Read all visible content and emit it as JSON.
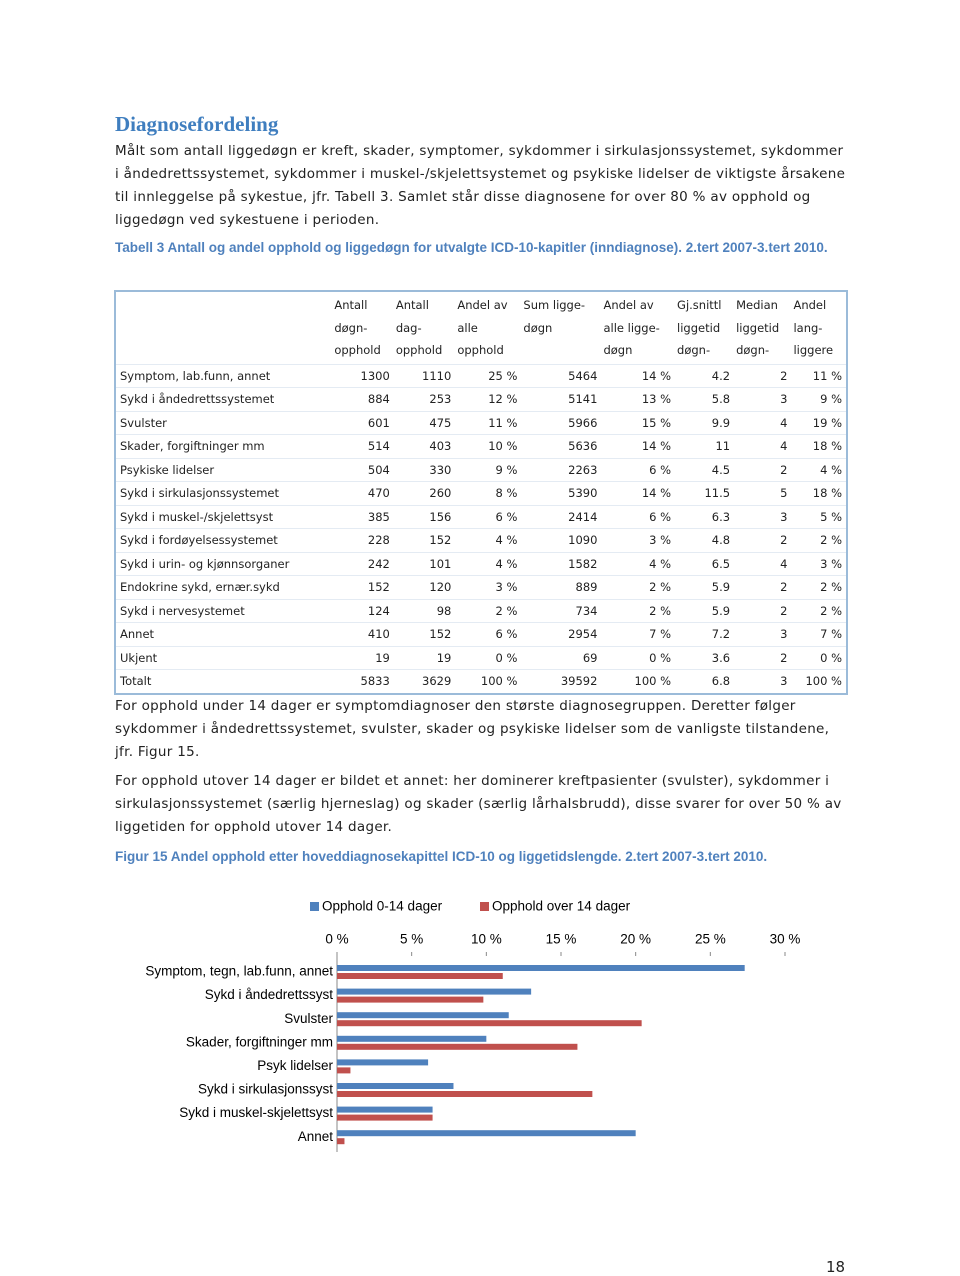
{
  "heading": "Diagnosefordeling",
  "paragraphs": [
    "Målt som antall liggedøgn er kreft, skader, symptomer, sykdommer i sirkulasjonssystemet, sykdommer i åndedrettssystemet, sykdommer i muskel-/skjelettsystemet og psykiske lidelser de viktigste årsakene til innleggelse på sykestue, jfr. Tabell 3. Samlet står disse diagnosene for over 80 % av opphold og liggedøgn ved sykestuene i perioden.",
    "For opphold under 14 dager er symptomdiagnoser den største diagnosegruppen. Deretter følger sykdommer i åndedrettssystemet, svulster, skader og psykiske lidelser som de vanligste tilstandene, jfr. Figur 15.",
    "For opphold utover 14 dager er bildet et annet: her dominerer kreftpasienter (svulster), sykdommer i sirkulasjonssystemet (særlig hjerneslag) og skader (særlig lårhalsbrudd), disse svarer for over 50 % av liggetiden for opphold utover 14 dager."
  ],
  "table": {
    "caption": "Tabell 3 Antall og andel opphold og liggedøgn for utvalgte ICD-10-kapitler (inndiagnose). 2.tert 2007-3.tert 2010.",
    "headers": [
      [
        "Antall",
        "døgn-",
        "opphold"
      ],
      [
        "Antall",
        "dag-",
        "opphold"
      ],
      [
        "Andel av",
        "alle",
        "opphold"
      ],
      [
        "Sum ligge-",
        "døgn"
      ],
      [
        "Andel av",
        "alle ligge-",
        "døgn"
      ],
      [
        "Gj.snittl",
        "liggetid",
        "døgn-"
      ],
      [
        "Median",
        "liggetid",
        "døgn-"
      ],
      [
        "Andel",
        "lang-",
        "liggere"
      ]
    ],
    "rows": [
      [
        "Symptom, lab.funn, annet",
        "1300",
        "1110",
        "25 %",
        "5464",
        "14 %",
        "4.2",
        "2",
        "11 %"
      ],
      [
        "Sykd i åndedrettssystemet",
        "884",
        "253",
        "12 %",
        "5141",
        "13 %",
        "5.8",
        "3",
        "9 %"
      ],
      [
        "Svulster",
        "601",
        "475",
        "11 %",
        "5966",
        "15 %",
        "9.9",
        "4",
        "19 %"
      ],
      [
        "Skader, forgiftninger mm",
        "514",
        "403",
        "10 %",
        "5636",
        "14 %",
        "11",
        "4",
        "18 %"
      ],
      [
        "Psykiske lidelser",
        "504",
        "330",
        "9 %",
        "2263",
        "6 %",
        "4.5",
        "2",
        "4 %"
      ],
      [
        "Sykd i sirkulasjonssystemet",
        "470",
        "260",
        "8 %",
        "5390",
        "14 %",
        "11.5",
        "5",
        "18 %"
      ],
      [
        "Sykd i muskel-/skjelettsyst",
        "385",
        "156",
        "6 %",
        "2414",
        "6 %",
        "6.3",
        "3",
        "5 %"
      ],
      [
        "Sykd i fordøyelsessystemet",
        "228",
        "152",
        "4 %",
        "1090",
        "3 %",
        "4.8",
        "2",
        "2 %"
      ],
      [
        "Sykd i urin- og kjønnsorganer",
        "242",
        "101",
        "4 %",
        "1582",
        "4 %",
        "6.5",
        "4",
        "3 %"
      ],
      [
        "Endokrine sykd, ernær.sykd",
        "152",
        "120",
        "3 %",
        "889",
        "2 %",
        "5.9",
        "2",
        "2 %"
      ],
      [
        "Sykd i nervesystemet",
        "124",
        "98",
        "2 %",
        "734",
        "2 %",
        "5.9",
        "2",
        "2 %"
      ],
      [
        "Annet",
        "410",
        "152",
        "6 %",
        "2954",
        "7 %",
        "7.2",
        "3",
        "7 %"
      ],
      [
        "Ukjent",
        "19",
        "19",
        "0 %",
        "69",
        "0 %",
        "3.6",
        "2",
        "0 %"
      ],
      [
        "Totalt",
        "5833",
        "3629",
        "100 %",
        "39592",
        "100 %",
        "6.8",
        "3",
        "100 %"
      ]
    ]
  },
  "chart_data": {
    "type": "hbar",
    "title": "Figur 15 Andel opphold etter hoveddiagnosekapittel ICD-10 og liggetidslengde. 2.tert 2007-3.tert 2010.",
    "categories": [
      "Symptom, tegn, lab.funn, annet",
      "Sykd i åndedrettssyst",
      "Svulster",
      "Skader, forgiftninger mm",
      "Psyk lidelser",
      "Sykd i sirkulasjonssyst",
      "Sykd i muskel-skjelettsyst",
      "Annet"
    ],
    "series": [
      {
        "name": "Opphold 0-14 dager",
        "color": "#4f81bd",
        "values": [
          27.3,
          13.0,
          11.5,
          10.0,
          6.1,
          7.8,
          6.4,
          20.0
        ]
      },
      {
        "name": "Opphold over 14 dager",
        "color": "#c0504d",
        "values": [
          11.1,
          9.8,
          20.4,
          16.1,
          0.9,
          17.1,
          6.4,
          0.5
        ]
      }
    ],
    "xlim": [
      0,
      30
    ],
    "xticks": [
      {
        "value": 0,
        "label": "0 %"
      },
      {
        "value": 5,
        "label": "5 %"
      },
      {
        "value": 10,
        "label": "10 %"
      },
      {
        "value": 15,
        "label": "15 %"
      },
      {
        "value": 20,
        "label": "20 %"
      },
      {
        "value": 25,
        "label": "25 %"
      },
      {
        "value": 30,
        "label": "30 %"
      }
    ],
    "legend": "top"
  },
  "page_number": "18"
}
